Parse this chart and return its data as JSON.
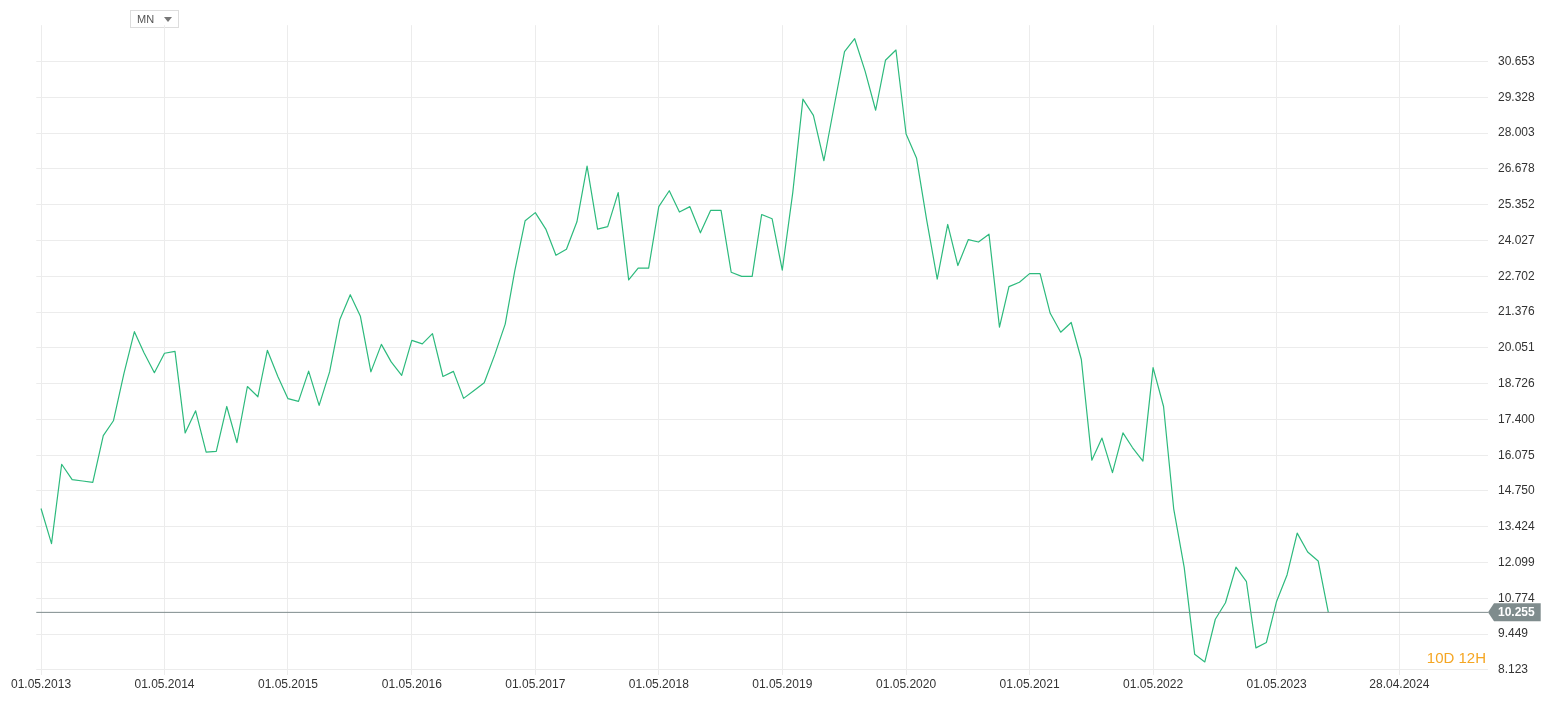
{
  "chart_data": {
    "type": "line",
    "annotations": [
      "MN",
      "10D 12H"
    ],
    "x": [
      "2013-05",
      "2013-06",
      "2013-07",
      "2013-08",
      "2013-09",
      "2013-10",
      "2013-11",
      "2013-12",
      "2014-01",
      "2014-02",
      "2014-03",
      "2014-04",
      "2014-05",
      "2014-06",
      "2014-07",
      "2014-08",
      "2014-09",
      "2014-10",
      "2014-11",
      "2014-12",
      "2015-01",
      "2015-02",
      "2015-03",
      "2015-04",
      "2015-05",
      "2015-06",
      "2015-07",
      "2015-08",
      "2015-09",
      "2015-10",
      "2015-11",
      "2015-12",
      "2016-01",
      "2016-02",
      "2016-03",
      "2016-04",
      "2016-05",
      "2016-06",
      "2016-07",
      "2016-08",
      "2016-09",
      "2016-10",
      "2016-11",
      "2016-12",
      "2017-01",
      "2017-02",
      "2017-03",
      "2017-04",
      "2017-05",
      "2017-06",
      "2017-07",
      "2017-08",
      "2017-09",
      "2017-10",
      "2017-11",
      "2017-12",
      "2018-01",
      "2018-02",
      "2018-03",
      "2018-04",
      "2018-05",
      "2018-06",
      "2018-07",
      "2018-08",
      "2018-09",
      "2018-10",
      "2018-11",
      "2018-12",
      "2019-01",
      "2019-02",
      "2019-03",
      "2019-04",
      "2019-05",
      "2019-06",
      "2019-07",
      "2019-08",
      "2019-09",
      "2019-10",
      "2019-11",
      "2019-12",
      "2020-01",
      "2020-02",
      "2020-03",
      "2020-04",
      "2020-05",
      "2020-06",
      "2020-07",
      "2020-08",
      "2020-09",
      "2020-10",
      "2020-11",
      "2020-12",
      "2021-01",
      "2021-02",
      "2021-03",
      "2021-04",
      "2021-05",
      "2021-06",
      "2021-07",
      "2021-08",
      "2021-09",
      "2021-10",
      "2021-11",
      "2021-12",
      "2022-01",
      "2022-02",
      "2022-03",
      "2022-04",
      "2022-05",
      "2022-06",
      "2022-07",
      "2022-08",
      "2022-09",
      "2022-10",
      "2022-11",
      "2022-12",
      "2023-01",
      "2023-02",
      "2023-03",
      "2023-04",
      "2023-05",
      "2023-06",
      "2023-07",
      "2023-08",
      "2023-09",
      "2023-10"
    ],
    "series": [
      {
        "color": "#2dba7d",
        "values": [
          14.1,
          12.8,
          15.74,
          15.17,
          15.12,
          15.07,
          16.8,
          17.35,
          19.1,
          20.65,
          19.88,
          19.13,
          19.85,
          19.92,
          16.9,
          17.72,
          16.19,
          16.22,
          17.88,
          16.54,
          18.62,
          18.24,
          19.96,
          18.99,
          18.17,
          18.07,
          19.19,
          17.92,
          19.16,
          21.09,
          22.02,
          21.22,
          19.16,
          20.18,
          19.53,
          19.03,
          20.33,
          20.2,
          20.58,
          18.99,
          19.18,
          18.18,
          18.47,
          18.76,
          19.79,
          20.93,
          22.88,
          24.76,
          25.06,
          24.45,
          23.48,
          23.7,
          24.72,
          26.78,
          24.45,
          24.54,
          25.8,
          22.57,
          23.0,
          23.0,
          25.28,
          25.87,
          25.08,
          25.28,
          24.31,
          25.14,
          25.14,
          22.85,
          22.7,
          22.7,
          24.99,
          24.83,
          22.93,
          25.8,
          29.26,
          28.66,
          26.98,
          28.98,
          31.02,
          31.5,
          30.29,
          28.85,
          30.7,
          31.08,
          27.97,
          27.07,
          24.77,
          22.6,
          24.62,
          23.1,
          24.06,
          23.97,
          24.26,
          20.82,
          22.32,
          22.48,
          22.8,
          22.8,
          21.33,
          20.63,
          20.99,
          19.62,
          15.89,
          16.71,
          15.43,
          16.9,
          16.36,
          15.86,
          19.32,
          17.88,
          14.09,
          11.92,
          8.7,
          8.42,
          10.0,
          10.61,
          11.93,
          11.39,
          8.94,
          9.14,
          10.66,
          11.64,
          13.19,
          12.49,
          12.16,
          10.255
        ]
      }
    ],
    "xlim": [
      "2013-04-17",
      "2025-01-15"
    ],
    "xticks": [
      {
        "value": "2013-05-01",
        "label": "01.05.2013"
      },
      {
        "value": "2014-05-01",
        "label": "01.05.2014"
      },
      {
        "value": "2015-05-01",
        "label": "01.05.2015"
      },
      {
        "value": "2016-05-01",
        "label": "01.05.2016"
      },
      {
        "value": "2017-05-01",
        "label": "01.05.2017"
      },
      {
        "value": "2018-05-01",
        "label": "01.05.2018"
      },
      {
        "value": "2019-05-01",
        "label": "01.05.2019"
      },
      {
        "value": "2020-05-01",
        "label": "01.05.2020"
      },
      {
        "value": "2021-05-01",
        "label": "01.05.2021"
      },
      {
        "value": "2022-05-01",
        "label": "01.05.2022"
      },
      {
        "value": "2023-05-01",
        "label": "01.05.2023"
      },
      {
        "value": "2024-04-28",
        "label": "28.04.2024"
      }
    ],
    "ylim": [
      7.95,
      32.0
    ],
    "yticks": [
      8.123,
      9.449,
      10.774,
      12.099,
      13.424,
      {
        "value": 14.75,
        "label": "14.750"
      },
      16.075,
      {
        "value": 17.4,
        "label": "17.400"
      },
      18.726,
      20.051,
      21.376,
      22.702,
      24.027,
      25.352,
      26.678,
      28.003,
      29.328,
      30.653
    ],
    "ref_lines": [
      {
        "axis": "y",
        "value": 10.255,
        "label": "10.255",
        "color": "#7f8c8d"
      }
    ],
    "grid": true,
    "legend": false,
    "marker": "none",
    "line_style": "solid"
  }
}
